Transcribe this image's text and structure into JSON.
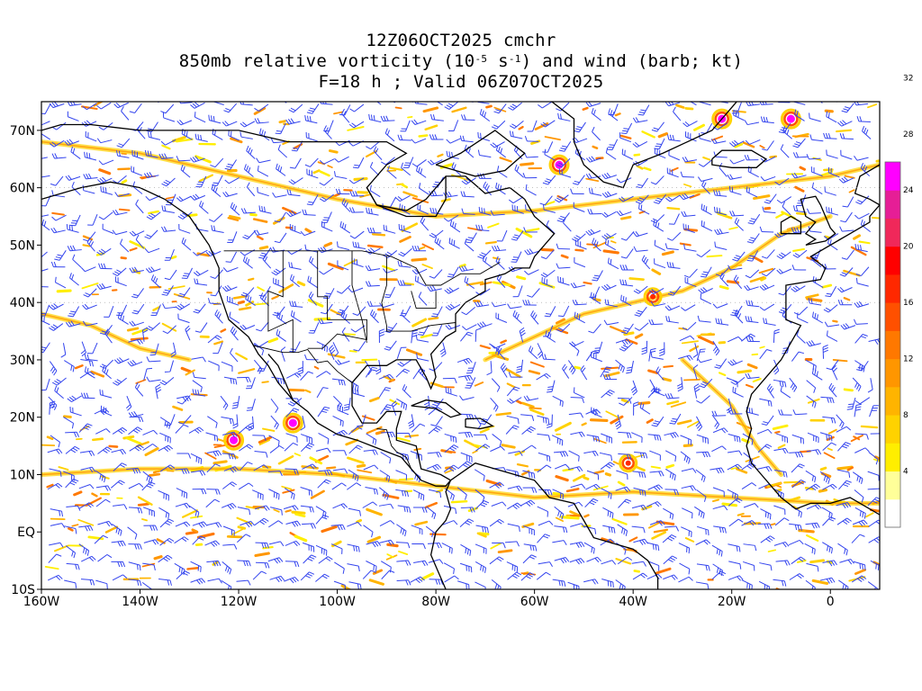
{
  "title": {
    "line1": "12Z06OCT2025 cmchr",
    "line2_a": "850mb relative vorticity (10",
    "line2_exp1": "-5",
    "line2_b": " s",
    "line2_exp2": "-1",
    "line2_c": ") and wind (barb; kt)",
    "line3": "F=18 h ; Valid 06Z07OCT2025"
  },
  "map": {
    "lon_range": [
      -160,
      10
    ],
    "lat_range": [
      -10,
      75
    ],
    "lat_ticks": [
      {
        "value": 70,
        "label": "70N"
      },
      {
        "value": 60,
        "label": "60N"
      },
      {
        "value": 50,
        "label": "50N"
      },
      {
        "value": 40,
        "label": "40N"
      },
      {
        "value": 30,
        "label": "30N"
      },
      {
        "value": 20,
        "label": "20N"
      },
      {
        "value": 10,
        "label": "10N"
      },
      {
        "value": 0,
        "label": "EQ"
      },
      {
        "value": -10,
        "label": "10S"
      }
    ],
    "lon_ticks": [
      {
        "value": -160,
        "label": "160W"
      },
      {
        "value": -140,
        "label": "140W"
      },
      {
        "value": -120,
        "label": "120W"
      },
      {
        "value": -100,
        "label": "100W"
      },
      {
        "value": -80,
        "label": "80W"
      },
      {
        "value": -60,
        "label": "60W"
      },
      {
        "value": -40,
        "label": "40W"
      },
      {
        "value": -20,
        "label": "20W"
      },
      {
        "value": 0,
        "label": "0"
      }
    ],
    "colors": {
      "barb": "#3344ee",
      "coast": "#000000"
    },
    "vortex_features": [
      {
        "lon": -109,
        "lat": 19,
        "peak": 34
      },
      {
        "lon": -121,
        "lat": 16,
        "peak": 34
      },
      {
        "lon": -41,
        "lat": 12,
        "peak": 16
      },
      {
        "lon": -36,
        "lat": 41,
        "peak": 16
      },
      {
        "lon": -8,
        "lat": 72,
        "peak": 34
      },
      {
        "lon": -55,
        "lat": 64,
        "peak": 34
      },
      {
        "lon": -22,
        "lat": 72,
        "peak": 34
      }
    ]
  },
  "colorbar": {
    "colors": [
      "#ffffff",
      "#ffff99",
      "#ffee00",
      "#ffd200",
      "#ffb400",
      "#ff9600",
      "#ff7800",
      "#ff5000",
      "#ff2800",
      "#ff0000",
      "#f0285a",
      "#e61e96",
      "#ff00ff"
    ],
    "tick_labels": [
      "4",
      "8",
      "12",
      "16",
      "20",
      "24",
      "28",
      "32"
    ]
  }
}
